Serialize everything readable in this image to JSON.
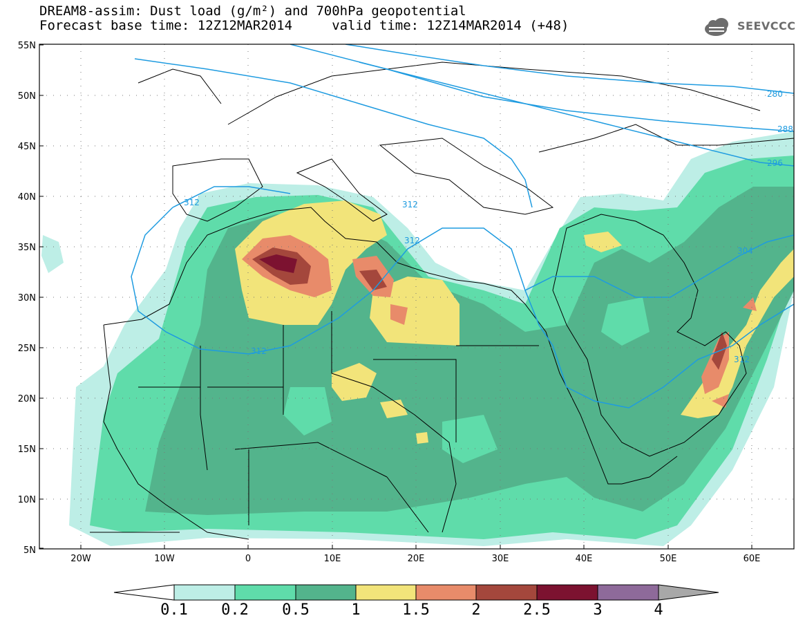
{
  "title": {
    "line1": "DREAM8-assim: Dust load (g/m²) and 700hPa geopotential",
    "line2": "Forecast base time: 12Z12MAR2014     valid time: 12Z14MAR2014 (+48)"
  },
  "logo": {
    "text": "SEEVCCC",
    "icon": "cloud-icon"
  },
  "map": {
    "projection": "lat-lon",
    "lon_range": [
      -25,
      65
    ],
    "lat_range": [
      5,
      55
    ],
    "lat_ticks": [
      "55N",
      "50N",
      "45N",
      "40N",
      "35N",
      "30N",
      "25N",
      "20N",
      "15N",
      "10N",
      "5N"
    ],
    "lon_ticks": [
      "20W",
      "10W",
      "0",
      "10E",
      "20E",
      "30E",
      "40E",
      "50E",
      "60E"
    ],
    "contour_labels": [
      "280",
      "288",
      "296",
      "304",
      "312",
      "312",
      "312",
      "312",
      "312"
    ],
    "contour_color": "#1e9be0"
  },
  "colorbar": {
    "labels": [
      "0.1",
      "0.2",
      "0.5",
      "1",
      "1.5",
      "2",
      "2.5",
      "3",
      "4"
    ],
    "colors": [
      "#ffffff",
      "#bdeee6",
      "#5fdcaa",
      "#53b48c",
      "#f2e47a",
      "#e88b6a",
      "#a4473c",
      "#7c1230",
      "#8e6a9a",
      "#a8a8a8"
    ]
  }
}
